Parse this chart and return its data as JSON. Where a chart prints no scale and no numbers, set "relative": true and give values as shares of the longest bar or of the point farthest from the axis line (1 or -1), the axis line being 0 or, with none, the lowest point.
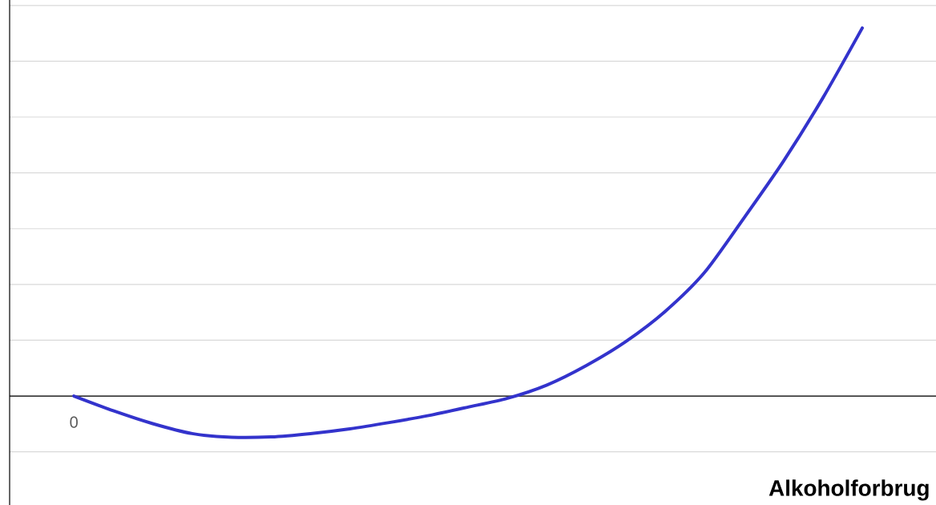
{
  "chart_data": {
    "type": "line",
    "xlabel": "Alkoholforbrug",
    "relative": true,
    "grid": "y",
    "color": "#3333cc",
    "annotations": [
      "0"
    ],
    "categories": [
      null,
      null,
      null,
      null,
      null,
      null,
      null,
      null,
      null,
      null,
      null,
      null,
      null,
      null,
      null,
      null,
      null,
      null,
      null,
      null,
      null
    ],
    "values": [
      0,
      -0.04,
      -0.075,
      -0.102,
      -0.112,
      -0.111,
      -0.102,
      -0.089,
      -0.072,
      -0.053,
      -0.03,
      -0.006,
      0.03,
      0.083,
      0.148,
      0.23,
      0.336,
      0.484,
      0.638,
      0.81,
      1.0
    ]
  }
}
